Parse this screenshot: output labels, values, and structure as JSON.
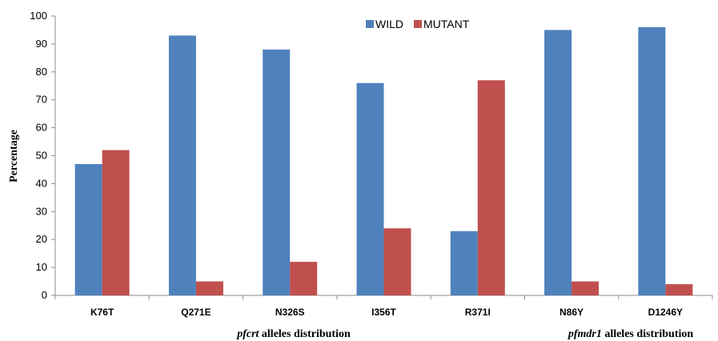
{
  "chart_data": {
    "type": "bar",
    "title": "",
    "ylabel": "Percentage",
    "ylim": [
      0,
      100
    ],
    "yticks": [
      0,
      10,
      20,
      30,
      40,
      50,
      60,
      70,
      80,
      90,
      100
    ],
    "categories": [
      "K76T",
      "Q271E",
      "N326S",
      "I356T",
      "R371I",
      "N86Y",
      "D1246Y"
    ],
    "series": [
      {
        "name": "WILD",
        "color": "#4F81BD",
        "values": [
          47,
          93,
          88,
          76,
          23,
          95,
          96
        ]
      },
      {
        "name": "MUTANT",
        "color": "#C0504D",
        "values": [
          52,
          5,
          12,
          24,
          77,
          5,
          4
        ]
      }
    ],
    "legend_position": "top-center",
    "grid": false,
    "group_labels": [
      {
        "gene": "pfcrt",
        "suffix": " alleles distribution"
      },
      {
        "gene": "pfmdr1",
        "suffix": " alleles distribution"
      }
    ]
  }
}
